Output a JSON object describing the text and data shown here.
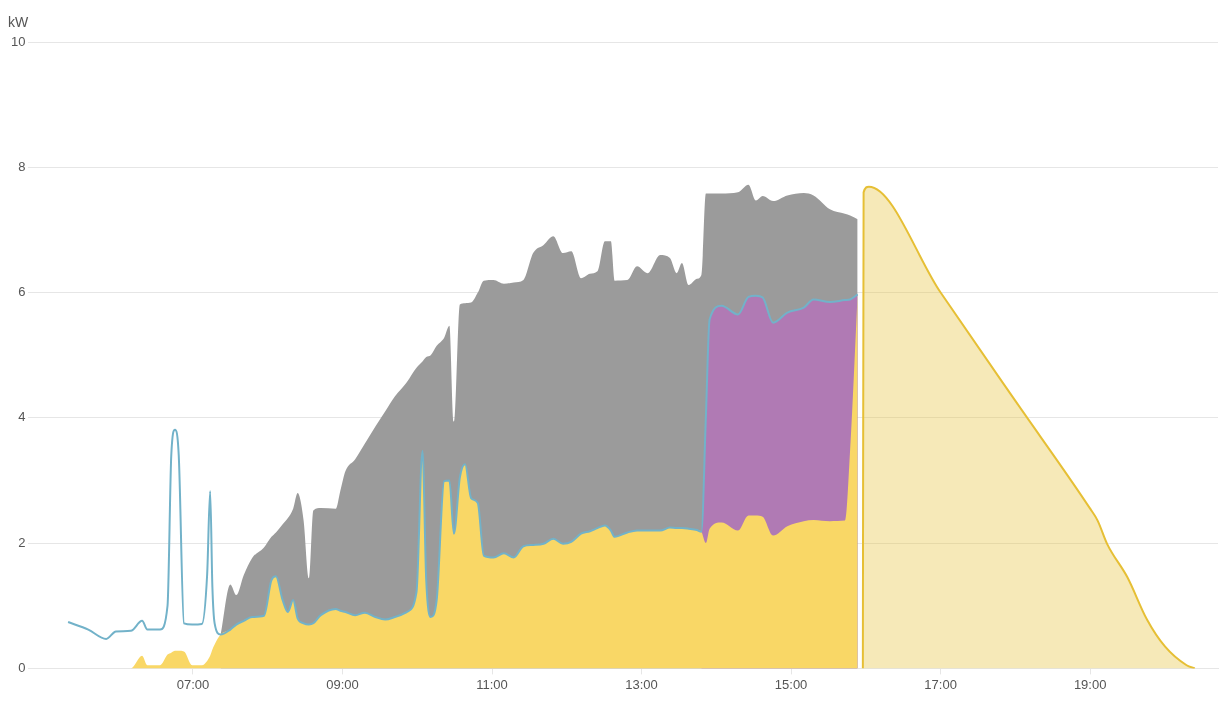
{
  "chart_data": {
    "type": "area",
    "ylabel": "kW",
    "grid": "y",
    "legend": false,
    "marker": "none",
    "xlim": [
      4.8,
      20.71
    ],
    "ylim": [
      0,
      10
    ],
    "yticks": [
      0,
      2,
      4,
      6,
      8,
      10
    ],
    "xticks": [
      {
        "value": 7,
        "label": "07:00"
      },
      {
        "value": 9,
        "label": "09:00"
      },
      {
        "value": 11,
        "label": "11:00"
      },
      {
        "value": 13,
        "label": "13:00"
      },
      {
        "value": 15,
        "label": "15:00"
      },
      {
        "value": 17,
        "label": "17:00"
      },
      {
        "value": 19,
        "label": "19:00"
      }
    ],
    "x": [
      5.33,
      5.6,
      5.84,
      5.97,
      6.17,
      6.32,
      6.39,
      6.56,
      6.66,
      6.71,
      6.76,
      6.81,
      6.88,
      6.99,
      7.12,
      7.19,
      7.23,
      7.26,
      7.29,
      7.37,
      7.5,
      7.58,
      7.68,
      7.79,
      7.95,
      8.05,
      8.11,
      8.2,
      8.27,
      8.34,
      8.4,
      8.48,
      8.55,
      8.61,
      8.71,
      8.91,
      8.97,
      9.04,
      9.17,
      9.3,
      9.44,
      9.57,
      9.7,
      9.86,
      9.99,
      10.07,
      10.12,
      10.18,
      10.26,
      10.36,
      10.43,
      10.49,
      10.57,
      10.64,
      10.72,
      10.81,
      10.89,
      11.02,
      11.16,
      11.29,
      11.42,
      11.55,
      11.69,
      11.82,
      11.95,
      12.06,
      12.19,
      12.31,
      12.41,
      12.51,
      12.59,
      12.64,
      12.81,
      12.94,
      13.08,
      13.25,
      13.38,
      13.47,
      13.54,
      13.63,
      13.74,
      13.8,
      13.86,
      13.91,
      14.07,
      14.29,
      14.43,
      14.53,
      14.62,
      14.76,
      14.95,
      15.17,
      15.3,
      15.52,
      15.72,
      15.79,
      15.89
    ],
    "series": [
      {
        "color": "#9b9b9b",
        "values": [
          null,
          null,
          null,
          null,
          null,
          null,
          null,
          null,
          null,
          null,
          null,
          null,
          null,
          null,
          null,
          null,
          null,
          null,
          null,
          0.54,
          1.34,
          1.17,
          1.49,
          1.76,
          1.93,
          2.1,
          2.17,
          2.3,
          2.4,
          2.55,
          2.8,
          2.36,
          1.44,
          2.52,
          2.56,
          2.55,
          2.83,
          3.15,
          3.34,
          3.59,
          3.86,
          4.1,
          4.34,
          4.57,
          4.8,
          4.9,
          4.97,
          5.0,
          5.15,
          5.28,
          5.47,
          3.94,
          5.81,
          5.83,
          5.84,
          6.0,
          6.19,
          6.2,
          6.14,
          6.16,
          6.2,
          6.63,
          6.76,
          6.9,
          6.63,
          6.66,
          6.23,
          6.3,
          6.34,
          6.82,
          6.82,
          6.19,
          6.2,
          6.42,
          6.31,
          6.6,
          6.55,
          6.31,
          6.47,
          6.12,
          6.22,
          6.28,
          7.58,
          7.58,
          7.58,
          7.6,
          7.72,
          7.47,
          7.54,
          7.46,
          7.55,
          7.59,
          7.55,
          7.33,
          7.26,
          7.23,
          7.17
        ]
      },
      {
        "color": "#b07ab4",
        "values": [
          null,
          null,
          null,
          null,
          null,
          null,
          null,
          null,
          null,
          null,
          null,
          null,
          null,
          null,
          null,
          null,
          null,
          null,
          null,
          null,
          null,
          null,
          null,
          null,
          null,
          null,
          null,
          null,
          null,
          null,
          null,
          null,
          null,
          null,
          null,
          null,
          null,
          null,
          null,
          null,
          null,
          null,
          null,
          null,
          null,
          null,
          null,
          null,
          null,
          null,
          null,
          null,
          null,
          null,
          null,
          null,
          null,
          null,
          null,
          null,
          null,
          null,
          null,
          null,
          null,
          null,
          null,
          null,
          null,
          null,
          null,
          null,
          null,
          null,
          null,
          null,
          null,
          null,
          null,
          null,
          null,
          2.18,
          4.0,
          5.57,
          5.79,
          5.65,
          5.93,
          5.95,
          5.92,
          5.52,
          5.68,
          5.76,
          5.89,
          5.85,
          5.88,
          5.89,
          5.97
        ]
      },
      {
        "color": "#f9d766",
        "values": [
          0,
          0,
          0,
          0,
          0,
          0.2,
          0.05,
          0.05,
          0.22,
          0.25,
          0.28,
          0.28,
          0.27,
          0.05,
          0.05,
          0.12,
          0.2,
          0.3,
          0.38,
          0.54,
          0.62,
          0.7,
          0.76,
          0.82,
          0.84,
          1.41,
          1.47,
          1.09,
          0.9,
          1.09,
          0.8,
          0.72,
          0.7,
          0.72,
          0.85,
          0.95,
          0.92,
          0.9,
          0.85,
          0.89,
          0.82,
          0.78,
          0.82,
          0.9,
          1.22,
          3.47,
          1.41,
          0.82,
          1.09,
          2.99,
          3.0,
          2.15,
          3.05,
          3.26,
          2.72,
          2.64,
          1.8,
          1.77,
          1.84,
          1.77,
          1.95,
          1.97,
          1.99,
          2.07,
          1.99,
          2.02,
          2.15,
          2.19,
          2.24,
          2.28,
          2.2,
          2.1,
          2.17,
          2.2,
          2.2,
          2.2,
          2.25,
          2.24,
          2.24,
          2.23,
          2.21,
          2.18,
          2.0,
          2.23,
          2.33,
          2.2,
          2.44,
          2.44,
          2.42,
          2.12,
          2.27,
          2.35,
          2.37,
          2.35,
          2.36,
          3.5,
          5.97
        ]
      },
      {
        "type": "line",
        "color": "#72b2c9",
        "values": [
          0.74,
          0.62,
          0.47,
          0.59,
          0.6,
          0.76,
          0.62,
          0.62,
          1.0,
          3.4,
          3.81,
          3.4,
          0.72,
          0.7,
          0.71,
          1.5,
          2.83,
          1.3,
          0.72,
          0.54,
          0.62,
          0.7,
          0.76,
          0.82,
          0.84,
          1.41,
          1.47,
          1.09,
          0.9,
          1.09,
          0.8,
          0.72,
          0.7,
          0.72,
          0.85,
          0.95,
          0.92,
          0.9,
          0.85,
          0.89,
          0.82,
          0.78,
          0.82,
          0.9,
          1.22,
          3.47,
          1.41,
          0.82,
          1.09,
          2.99,
          3.0,
          2.15,
          3.05,
          3.26,
          2.72,
          2.64,
          1.8,
          1.77,
          1.84,
          1.77,
          1.95,
          1.97,
          1.99,
          2.07,
          1.99,
          2.02,
          2.15,
          2.19,
          2.24,
          2.28,
          2.2,
          2.1,
          2.17,
          2.2,
          2.2,
          2.2,
          2.25,
          2.24,
          2.24,
          2.23,
          2.21,
          2.18,
          4.0,
          5.57,
          5.79,
          5.65,
          5.93,
          5.95,
          5.92,
          5.52,
          5.68,
          5.76,
          5.89,
          5.85,
          5.88,
          5.89,
          5.97
        ]
      },
      {
        "color": "#e6bf35",
        "x": [
          15.96,
          15.97,
          16.04,
          17.0,
          18.0,
          19.0,
          19.1,
          19.23,
          19.5,
          19.76,
          20.0,
          20.29,
          20.4
        ],
        "values": [
          0,
          7.6,
          7.69,
          6.0,
          4.27,
          2.55,
          2.36,
          1.98,
          1.45,
          0.78,
          0.35,
          0.05,
          0
        ]
      }
    ]
  }
}
